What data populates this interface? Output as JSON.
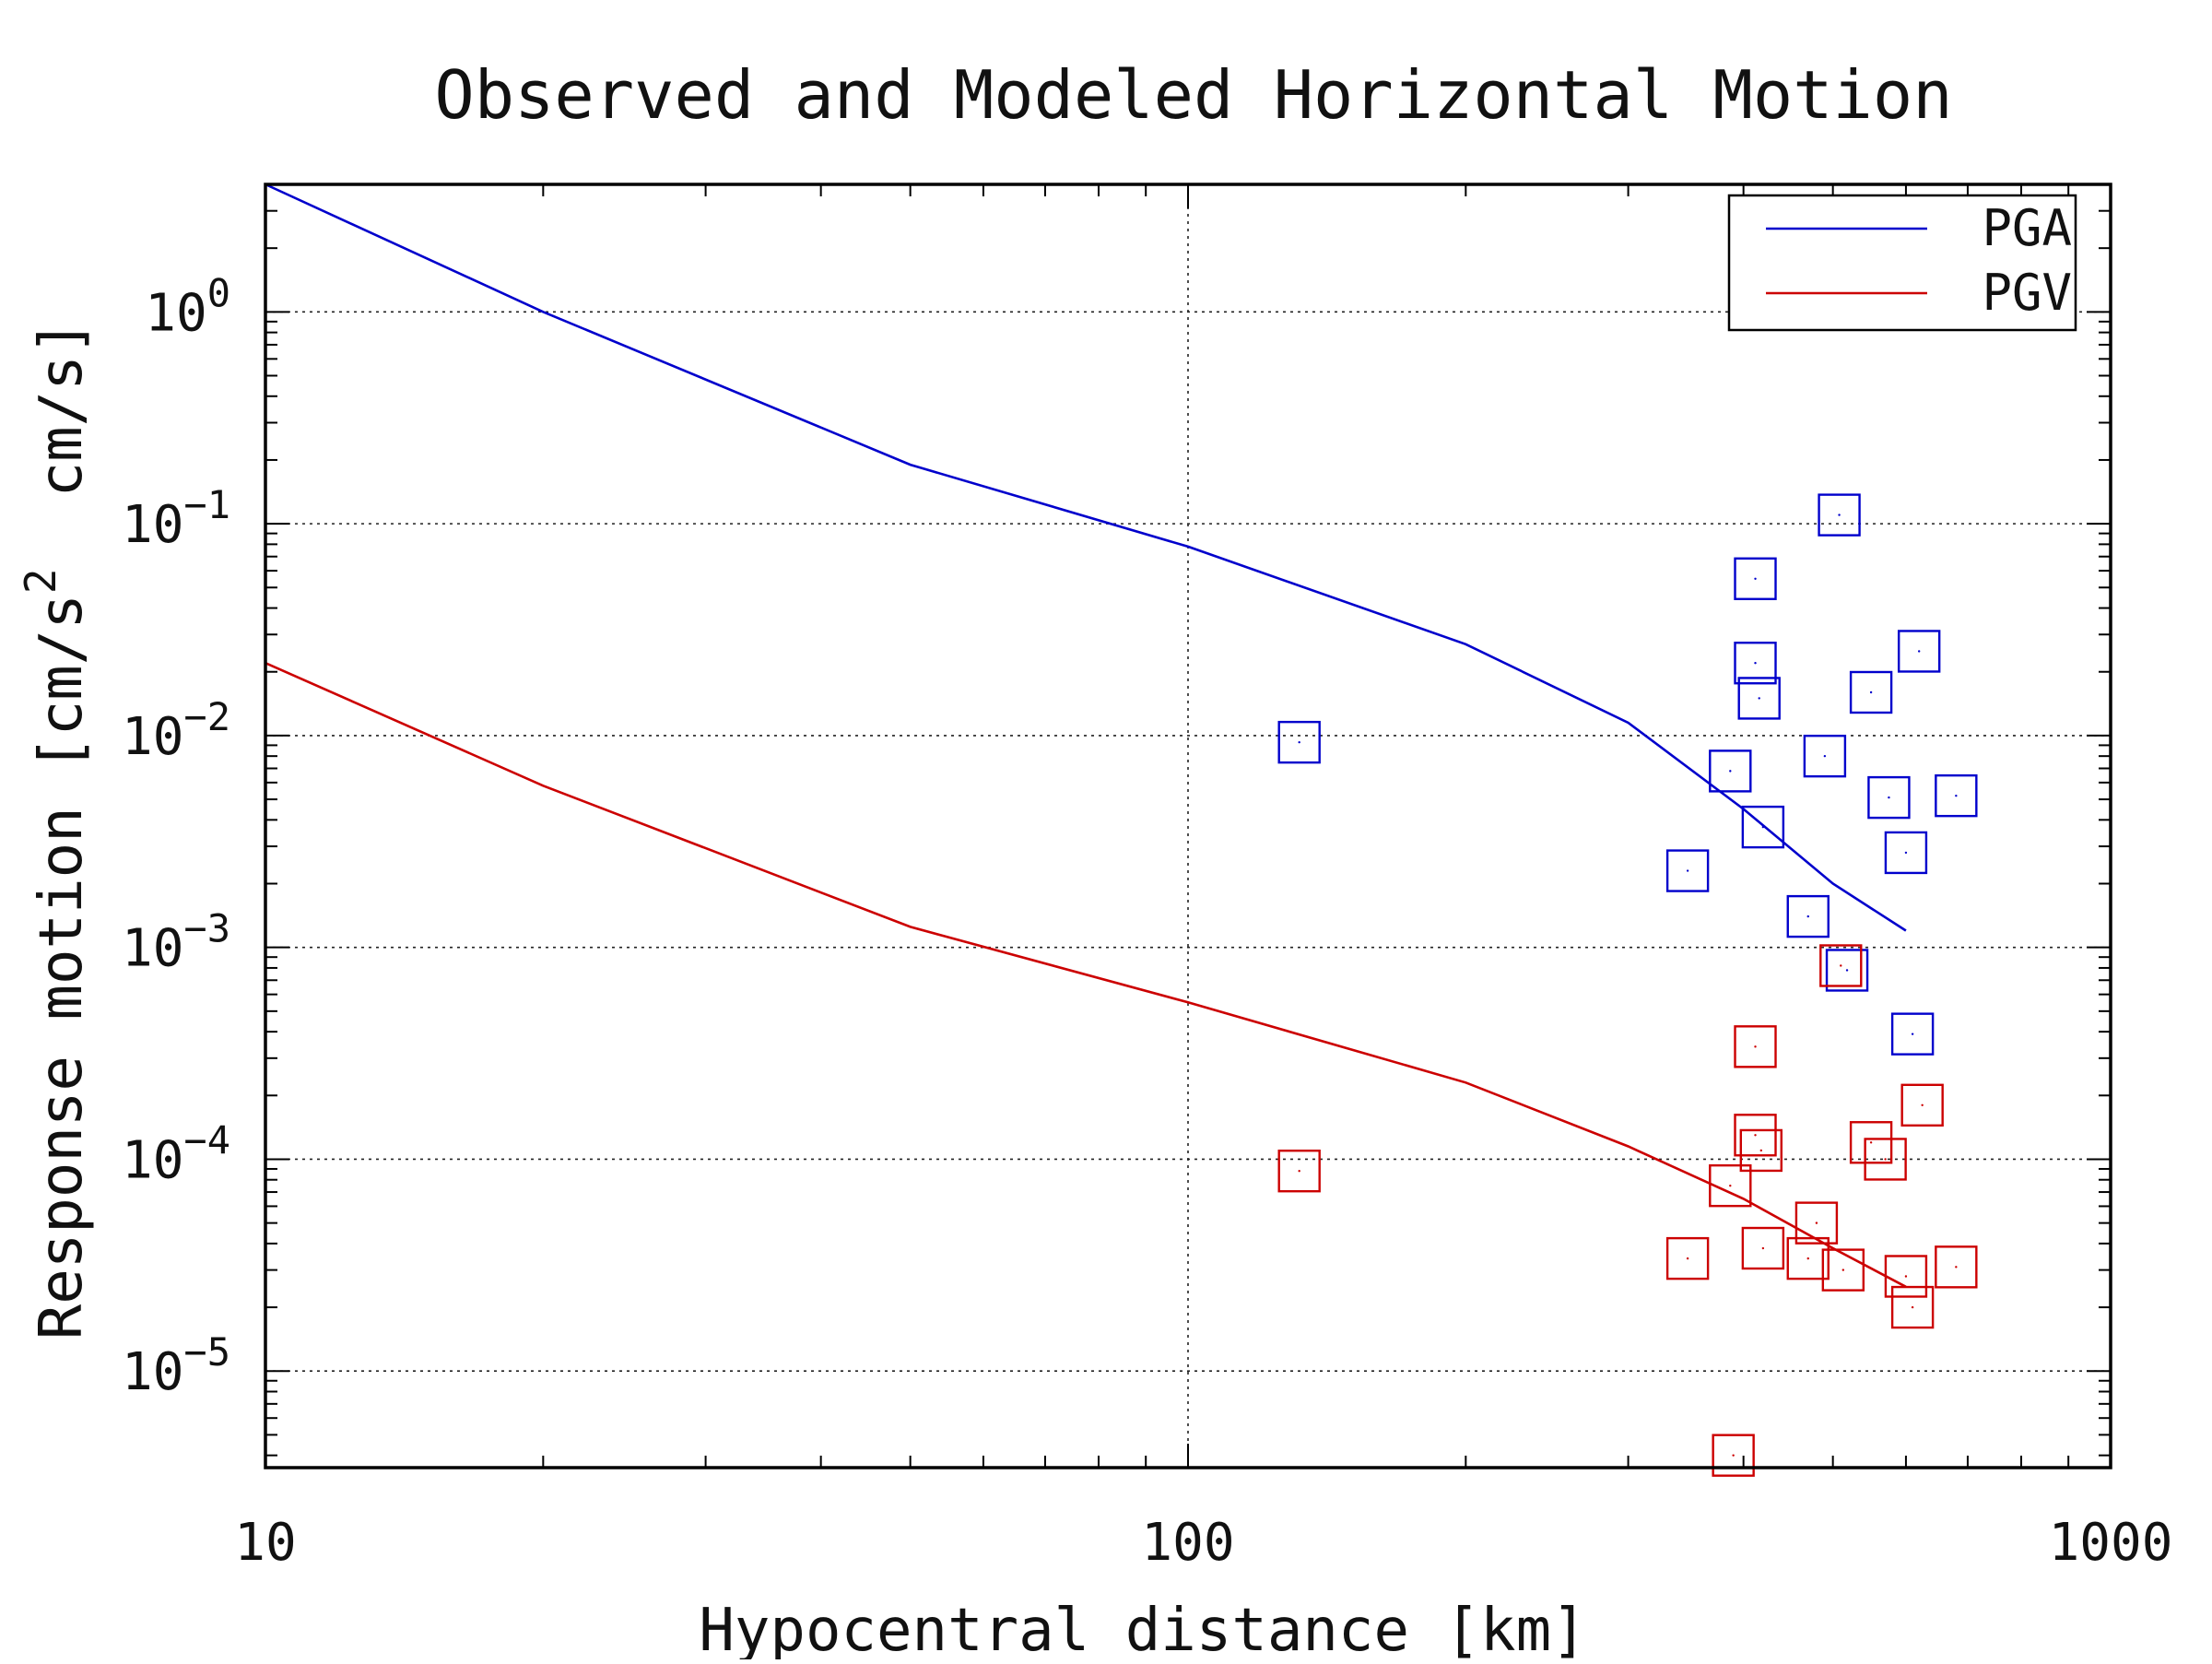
{
  "chart_data": {
    "type": "scatter",
    "title": "Observed and Modeled Horizontal Motion",
    "xlabel": "Hypocentral distance [km]",
    "ylabel": "Response motion [cm/s2 cm/s]",
    "x_scale": "log",
    "y_scale": "log",
    "xlim": [
      10,
      1000
    ],
    "ylim": [
      3.5e-06,
      4.0
    ],
    "x_ticks": [
      {
        "value": 10,
        "label": "10"
      },
      {
        "value": 100,
        "label": "100"
      },
      {
        "value": 1000,
        "label": "1000"
      }
    ],
    "y_ticks": [
      {
        "value": 1,
        "base": "10",
        "exp": "0"
      },
      {
        "value": 0.1,
        "base": "10",
        "exp": "−1"
      },
      {
        "value": 0.01,
        "base": "10",
        "exp": "−2"
      },
      {
        "value": 0.001,
        "base": "10",
        "exp": "−3"
      },
      {
        "value": 0.0001,
        "base": "10",
        "exp": "−4"
      },
      {
        "value": 1e-05,
        "base": "10",
        "exp": "−5"
      }
    ],
    "grid": true,
    "legend_position": "top-right",
    "series": [
      {
        "name": "PGA",
        "kind": "line",
        "color": "#0000cc",
        "x": [
          10,
          20,
          50,
          100,
          200,
          300,
          400,
          500,
          600
        ],
        "y": [
          4.0,
          1.0,
          0.19,
          0.078,
          0.027,
          0.0115,
          0.0045,
          0.002,
          0.0012
        ]
      },
      {
        "name": "PGV",
        "kind": "line",
        "color": "#cc0000",
        "x": [
          10,
          20,
          50,
          100,
          200,
          300,
          400,
          500,
          600
        ],
        "y": [
          0.022,
          0.0058,
          0.00125,
          0.00055,
          0.00023,
          0.000115,
          6.5e-05,
          3.8e-05,
          2.5e-05
        ]
      },
      {
        "kind": "markers",
        "marker": "square",
        "color": "#0000cc",
        "x": [
          132,
          348,
          387,
          412,
          412,
          416,
          420,
          470,
          490,
          508,
          518,
          550,
          575,
          600,
          610,
          620,
          680
        ],
        "y": [
          0.0093,
          0.0023,
          0.0068,
          0.055,
          0.022,
          0.015,
          0.0037,
          0.0014,
          0.008,
          0.11,
          0.00078,
          0.016,
          0.0051,
          0.0028,
          0.00039,
          0.025,
          0.0052
        ]
      },
      {
        "kind": "markers",
        "marker": "square",
        "color": "#cc0000",
        "x": [
          132,
          348,
          387,
          390,
          412,
          412,
          418,
          420,
          470,
          480,
          510,
          513,
          550,
          570,
          600,
          610,
          625,
          680
        ],
        "y": [
          8.8e-05,
          3.4e-05,
          7.5e-05,
          4e-06,
          0.00034,
          0.00013,
          0.00011,
          3.8e-05,
          3.4e-05,
          5e-05,
          0.00082,
          3e-05,
          0.00012,
          0.0001,
          2.8e-05,
          2e-05,
          0.00018,
          3.1e-05
        ]
      }
    ]
  }
}
